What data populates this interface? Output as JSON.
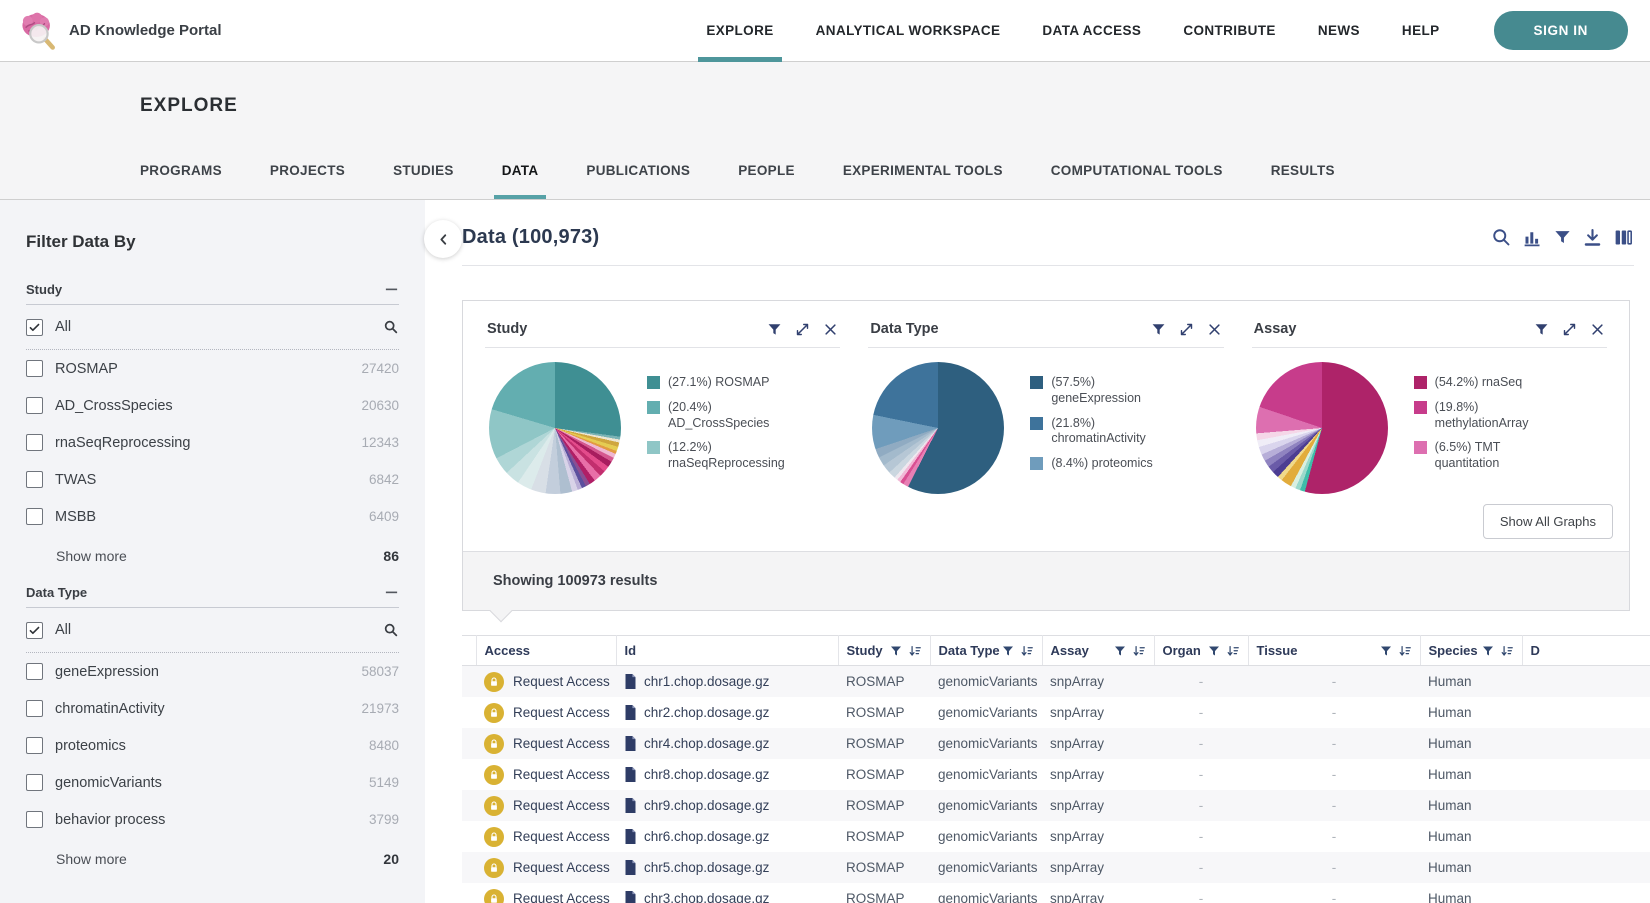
{
  "brand": {
    "name": "AD Knowledge Portal"
  },
  "top_nav": {
    "links": [
      {
        "label": "EXPLORE",
        "active": true
      },
      {
        "label": "ANALYTICAL WORKSPACE"
      },
      {
        "label": "DATA ACCESS"
      },
      {
        "label": "CONTRIBUTE"
      },
      {
        "label": "NEWS"
      },
      {
        "label": "HELP"
      }
    ],
    "sign_in": "SIGN IN"
  },
  "explore_nav": {
    "title": "EXPLORE",
    "tabs": [
      {
        "label": "PROGRAMS"
      },
      {
        "label": "PROJECTS"
      },
      {
        "label": "STUDIES"
      },
      {
        "label": "DATA",
        "active": true
      },
      {
        "label": "PUBLICATIONS"
      },
      {
        "label": "PEOPLE"
      },
      {
        "label": "EXPERIMENTAL TOOLS"
      },
      {
        "label": "COMPUTATIONAL TOOLS"
      },
      {
        "label": "RESULTS"
      }
    ]
  },
  "sidebar": {
    "title": "Filter Data By",
    "sections": [
      {
        "label": "Study",
        "all_label": "All",
        "all_checked": true,
        "items": [
          {
            "label": "ROSMAP",
            "count": "27420"
          },
          {
            "label": "AD_CrossSpecies",
            "count": "20630"
          },
          {
            "label": "rnaSeqReprocessing",
            "count": "12343"
          },
          {
            "label": "TWAS",
            "count": "6842"
          },
          {
            "label": "MSBB",
            "count": "6409"
          }
        ],
        "show_more": {
          "label": "Show more",
          "count": "86"
        }
      },
      {
        "label": "Data Type",
        "all_label": "All",
        "all_checked": true,
        "items": [
          {
            "label": "geneExpression",
            "count": "58037"
          },
          {
            "label": "chromatinActivity",
            "count": "21973"
          },
          {
            "label": "proteomics",
            "count": "8480"
          },
          {
            "label": "genomicVariants",
            "count": "5149"
          },
          {
            "label": "behavior process",
            "count": "3799"
          }
        ],
        "show_more": {
          "label": "Show more",
          "count": "20"
        }
      }
    ]
  },
  "main": {
    "title": "Data (100,973)",
    "results_text": "Showing 100973 results",
    "show_all_graphs": "Show All Graphs"
  },
  "chart_data": [
    {
      "type": "pie",
      "title": "Study",
      "slices": [
        {
          "label": "ROSMAP",
          "pct": 27.1,
          "color": "#3F8F93"
        },
        {
          "label": "AD_CrossSpecies",
          "pct": 20.4,
          "color": "#63AEB0"
        },
        {
          "label": "rnaSeqReprocessing",
          "pct": 12.2,
          "color": "#8FC6C6"
        }
      ],
      "other_pct": 40.3,
      "other_segments": [
        [
          "#7AB3B5",
          1
        ],
        [
          "#EDE6D2",
          1
        ],
        [
          "#CFA63E",
          1.5
        ],
        [
          "#E5CC52",
          1.5
        ],
        [
          "#E39A43",
          1
        ],
        [
          "#EFB7D2",
          1.5
        ],
        [
          "#D5588F",
          1.5
        ],
        [
          "#A81D5F",
          2
        ],
        [
          "#E34B8B",
          2
        ],
        [
          "#C22E6E",
          2
        ],
        [
          "#E86FA8",
          2.5
        ],
        [
          "#B01F66",
          2
        ],
        [
          "#8A4F93",
          1.5
        ],
        [
          "#5B4F9E",
          1.5
        ],
        [
          "#B9AED6",
          1.5
        ],
        [
          "#D8D3E8",
          2
        ],
        [
          "#AEBFD0",
          4
        ],
        [
          "#C3CEDC",
          5
        ],
        [
          "#D8DFE6",
          5
        ],
        [
          "#DCEBEB",
          5
        ],
        [
          "#C9E2E2",
          5
        ],
        [
          "#AFD6D6",
          6
        ]
      ]
    },
    {
      "type": "pie",
      "title": "Data Type",
      "slices": [
        {
          "label": "geneExpression",
          "pct": 57.5,
          "color": "#2E5F7F"
        },
        {
          "label": "chromatinActivity",
          "pct": 21.8,
          "color": "#3E739B"
        },
        {
          "label": "proteomics",
          "pct": 8.4,
          "color": "#6F9CBC"
        }
      ],
      "other_pct": 12.3,
      "other_segments": [
        [
          "#E77FB4",
          1.5
        ],
        [
          "#D94F92",
          1
        ],
        [
          "#F2B8D6",
          1
        ],
        [
          "#EFE8EF",
          1
        ],
        [
          "#CBD7E0",
          2
        ],
        [
          "#B6C7D5",
          2.5
        ],
        [
          "#A3BACC",
          2.5
        ],
        [
          "#90ABC2",
          2.5
        ]
      ]
    },
    {
      "type": "pie",
      "title": "Assay",
      "slices": [
        {
          "label": "rnaSeq",
          "pct": 54.2,
          "color": "#AE2369"
        },
        {
          "label": "methylationArray",
          "pct": 19.8,
          "color": "#C73C8B"
        },
        {
          "label": "TMT quantitation",
          "pct": 6.5,
          "color": "#DD6FB0"
        }
      ],
      "other_pct": 19.5,
      "other_segments": [
        [
          "#3EBDAA",
          1
        ],
        [
          "#9AD9CB",
          1
        ],
        [
          "#D9EFE0",
          1
        ],
        [
          "#E2AC3C",
          2.2
        ],
        [
          "#F0D98A",
          1
        ],
        [
          "#4C3D92",
          1.4
        ],
        [
          "#6A5BA8",
          1.4
        ],
        [
          "#8F83C0",
          1.4
        ],
        [
          "#B7AED8",
          1.4
        ],
        [
          "#DAD5ED",
          1.6
        ],
        [
          "#F0EDF7",
          1.4
        ],
        [
          "#F5D7E8",
          1.4
        ]
      ]
    }
  ],
  "table": {
    "access_label": "Request Access",
    "columns": [
      {
        "label": "Access",
        "filter": false,
        "sort": false
      },
      {
        "label": "Id",
        "filter": false,
        "sort": false
      },
      {
        "label": "Study",
        "filter": true,
        "sort": true
      },
      {
        "label": "Data Type",
        "filter": true,
        "sort": true
      },
      {
        "label": "Assay",
        "filter": true,
        "sort": true
      },
      {
        "label": "Organ",
        "filter": true,
        "sort": true
      },
      {
        "label": "Tissue",
        "filter": true,
        "sort": true
      },
      {
        "label": "Species",
        "filter": true,
        "sort": true
      },
      {
        "label": "D",
        "filter": false,
        "sort": false
      }
    ],
    "rows": [
      {
        "id": "chr1.chop.dosage.gz",
        "study": "ROSMAP",
        "data_type": "genomicVariants",
        "assay": "snpArray",
        "organ": "-",
        "tissue": "-",
        "species": "Human"
      },
      {
        "id": "chr2.chop.dosage.gz",
        "study": "ROSMAP",
        "data_type": "genomicVariants",
        "assay": "snpArray",
        "organ": "-",
        "tissue": "-",
        "species": "Human"
      },
      {
        "id": "chr4.chop.dosage.gz",
        "study": "ROSMAP",
        "data_type": "genomicVariants",
        "assay": "snpArray",
        "organ": "-",
        "tissue": "-",
        "species": "Human"
      },
      {
        "id": "chr8.chop.dosage.gz",
        "study": "ROSMAP",
        "data_type": "genomicVariants",
        "assay": "snpArray",
        "organ": "-",
        "tissue": "-",
        "species": "Human"
      },
      {
        "id": "chr9.chop.dosage.gz",
        "study": "ROSMAP",
        "data_type": "genomicVariants",
        "assay": "snpArray",
        "organ": "-",
        "tissue": "-",
        "species": "Human"
      },
      {
        "id": "chr6.chop.dosage.gz",
        "study": "ROSMAP",
        "data_type": "genomicVariants",
        "assay": "snpArray",
        "organ": "-",
        "tissue": "-",
        "species": "Human"
      },
      {
        "id": "chr5.chop.dosage.gz",
        "study": "ROSMAP",
        "data_type": "genomicVariants",
        "assay": "snpArray",
        "organ": "-",
        "tissue": "-",
        "species": "Human"
      },
      {
        "id": "chr3.chop.dosage.gz",
        "study": "ROSMAP",
        "data_type": "genomicVariants",
        "assay": "snpArray",
        "organ": "-",
        "tissue": "-",
        "species": "Human"
      }
    ]
  }
}
